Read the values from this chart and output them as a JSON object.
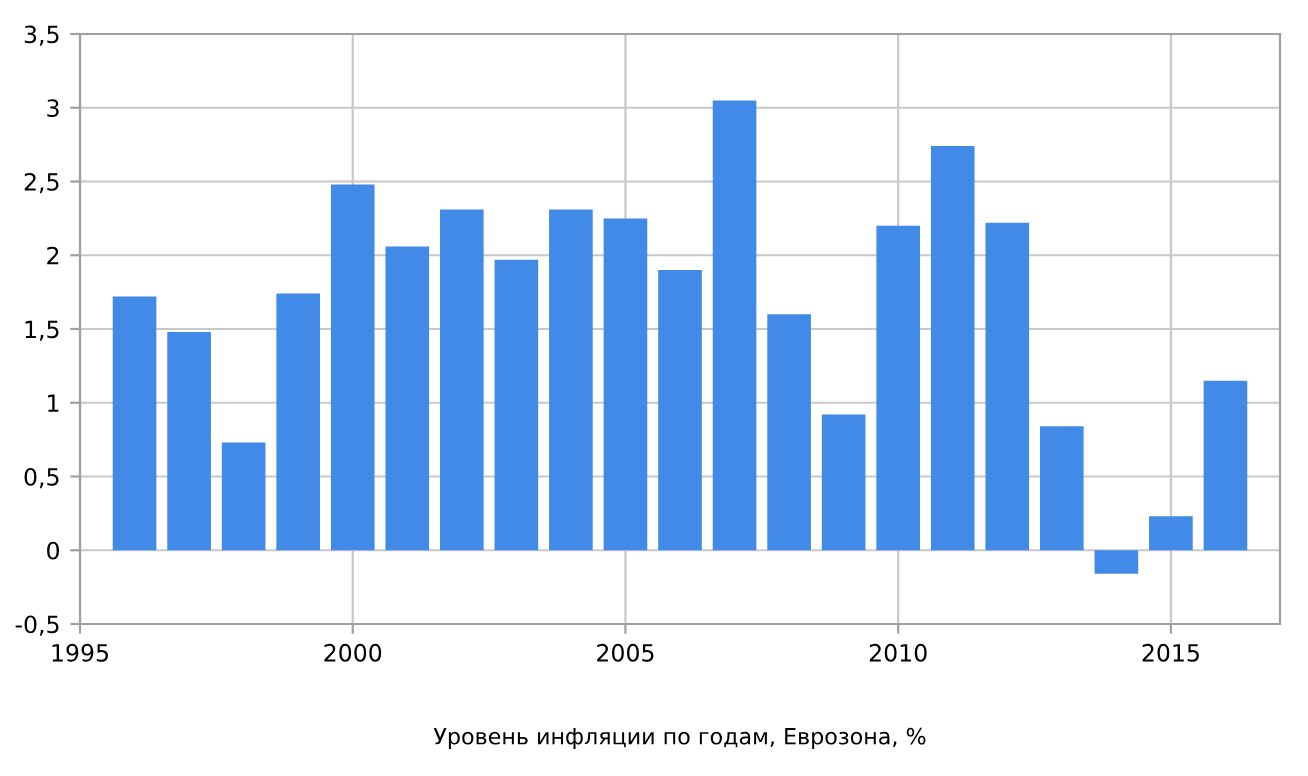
{
  "chart_data": {
    "type": "bar",
    "xlabel": "Уровень инфляции по годам, Еврозона, %",
    "x": [
      1996,
      1997,
      1998,
      1999,
      2000,
      2001,
      2002,
      2003,
      2004,
      2005,
      2006,
      2007,
      2008,
      2009,
      2010,
      2011,
      2012,
      2013,
      2014,
      2015,
      2016
    ],
    "values": [
      1.72,
      1.48,
      0.73,
      1.74,
      2.48,
      2.06,
      2.31,
      1.97,
      2.31,
      2.25,
      1.9,
      3.05,
      1.6,
      0.92,
      2.2,
      2.74,
      2.22,
      0.84,
      -0.16,
      0.23,
      1.15
    ],
    "color": "#428ae8",
    "xlim": [
      1995,
      2017
    ],
    "xticks": [
      1995,
      2000,
      2005,
      2010,
      2015
    ],
    "ylim": [
      -0.5,
      3.5
    ],
    "yticks": [
      {
        "value": -0.5,
        "label": "-0,5"
      },
      0,
      {
        "value": 0.5,
        "label": "0,5"
      },
      1,
      {
        "value": 1.5,
        "label": "1,5"
      },
      2,
      {
        "value": 2.5,
        "label": "2,5"
      },
      3,
      {
        "value": 3.5,
        "label": "3,5"
      }
    ],
    "grid": true
  }
}
